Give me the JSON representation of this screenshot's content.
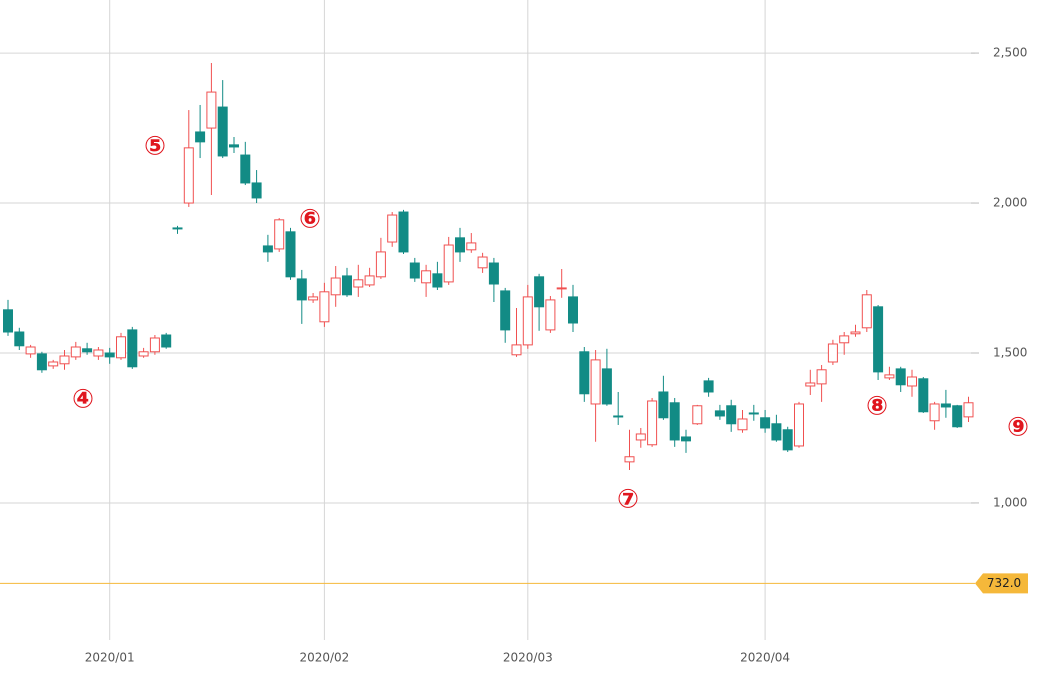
{
  "chart_data": {
    "type": "candlestick",
    "categories": [
      null,
      null,
      null,
      null,
      null,
      null,
      null,
      null,
      null,
      "2020/01",
      null,
      null,
      null,
      null,
      null,
      null,
      null,
      null,
      null,
      null,
      null,
      null,
      null,
      null,
      null,
      null,
      null,
      null,
      "2020/02",
      null,
      null,
      null,
      null,
      null,
      null,
      null,
      null,
      null,
      null,
      null,
      null,
      null,
      null,
      null,
      null,
      null,
      "2020/03",
      null,
      null,
      null,
      null,
      null,
      null,
      null,
      null,
      null,
      null,
      null,
      null,
      null,
      null,
      null,
      null,
      null,
      null,
      null,
      null,
      "2020/04",
      null,
      null,
      null,
      null,
      null,
      null,
      null,
      null,
      null,
      null,
      null,
      null,
      null,
      null,
      null,
      null,
      null,
      null
    ],
    "open": [
      1644,
      1570,
      1497,
      1497,
      1457,
      1464,
      1487,
      1514,
      1490,
      1500,
      1484,
      1577,
      1490,
      1504,
      1560,
      1917,
      2000,
      2237,
      2250,
      2320,
      2194,
      2160,
      2067,
      1857,
      1847,
      1904,
      1747,
      1677,
      1604,
      1694,
      1757,
      1720,
      1727,
      1754,
      1870,
      1970,
      1800,
      1734,
      1764,
      1737,
      1884,
      1844,
      1784,
      1800,
      1707,
      1494,
      1527,
      1754,
      1577,
      1714,
      1687,
      1504,
      1330,
      1447,
      1290,
      1137,
      1210,
      1194,
      1370,
      1334,
      1220,
      1264,
      1407,
      1307,
      1324,
      1244,
      1300,
      1284,
      1264,
      1244,
      1190,
      1390,
      1397,
      1470,
      1534,
      1564,
      1584,
      1654,
      1417,
      1447,
      1390,
      1414,
      1274,
      1330,
      1324,
      1287
    ],
    "high": [
      1677,
      1584,
      1527,
      1504,
      1477,
      1510,
      1537,
      1534,
      1520,
      1517,
      1567,
      1587,
      1517,
      1560,
      1567,
      1924,
      2310,
      2327,
      2467,
      2410,
      2220,
      2204,
      2110,
      1894,
      1950,
      1917,
      1777,
      1700,
      1734,
      1790,
      1784,
      1794,
      1784,
      1884,
      1970,
      1977,
      1817,
      1794,
      1804,
      1887,
      1917,
      1900,
      1834,
      1817,
      1717,
      1650,
      1727,
      1764,
      1690,
      1780,
      1727,
      1520,
      1510,
      1514,
      1370,
      1244,
      1250,
      1350,
      1424,
      1350,
      1244,
      1327,
      1417,
      1327,
      1344,
      1310,
      1327,
      1310,
      1294,
      1254,
      1337,
      1444,
      1460,
      1544,
      1570,
      1594,
      1710,
      1660,
      1454,
      1454,
      1444,
      1420,
      1337,
      1377,
      1327,
      1354
    ],
    "low": [
      1557,
      1510,
      1484,
      1434,
      1447,
      1444,
      1477,
      1494,
      1477,
      1464,
      1477,
      1447,
      1484,
      1494,
      1514,
      1897,
      1987,
      2150,
      2027,
      2150,
      2167,
      2060,
      2000,
      1804,
      1837,
      1744,
      1597,
      1667,
      1587,
      1654,
      1687,
      1687,
      1720,
      1747,
      1854,
      1830,
      1737,
      1687,
      1710,
      1727,
      1804,
      1834,
      1767,
      1670,
      1534,
      1487,
      1514,
      1574,
      1567,
      1684,
      1570,
      1337,
      1204,
      1324,
      1260,
      1110,
      1184,
      1187,
      1277,
      1187,
      1167,
      1260,
      1354,
      1277,
      1237,
      1234,
      1274,
      1234,
      1204,
      1170,
      1184,
      1360,
      1337,
      1460,
      1494,
      1554,
      1570,
      1410,
      1410,
      1370,
      1354,
      1300,
      1244,
      1284,
      1250,
      1270
    ],
    "close": [
      1570,
      1524,
      1520,
      1444,
      1470,
      1490,
      1520,
      1504,
      1510,
      1487,
      1554,
      1454,
      1504,
      1550,
      1520,
      1914,
      2184,
      2204,
      2370,
      2157,
      2187,
      2067,
      2017,
      1837,
      1944,
      1754,
      1677,
      1687,
      1704,
      1750,
      1694,
      1744,
      1757,
      1837,
      1960,
      1837,
      1750,
      1774,
      1720,
      1860,
      1837,
      1867,
      1820,
      1730,
      1577,
      1527,
      1687,
      1654,
      1677,
      1717,
      1600,
      1364,
      1477,
      1330,
      1287,
      1154,
      1230,
      1340,
      1284,
      1210,
      1207,
      1324,
      1370,
      1290,
      1264,
      1280,
      1297,
      1250,
      1210,
      1177,
      1330,
      1400,
      1444,
      1530,
      1557,
      1570,
      1694,
      1437,
      1427,
      1394,
      1420,
      1304,
      1330,
      1320,
      1254,
      1334
    ],
    "up_color": "#f05050",
    "down_color": "#128b85",
    "ylim": [
      543,
      2677
    ],
    "yticks": [
      {
        "value": 1000,
        "label": "1,000"
      },
      {
        "value": 1500,
        "label": "1,500"
      },
      {
        "value": 2000,
        "label": "2,000"
      },
      {
        "value": 2500,
        "label": "2,500"
      }
    ],
    "grid": true,
    "reference_line": {
      "value": 732,
      "label": "732.0",
      "color": "#f5b83a"
    },
    "annotations": [
      "④",
      "⑤",
      "⑥",
      "⑦",
      "⑧",
      "⑨"
    ]
  }
}
